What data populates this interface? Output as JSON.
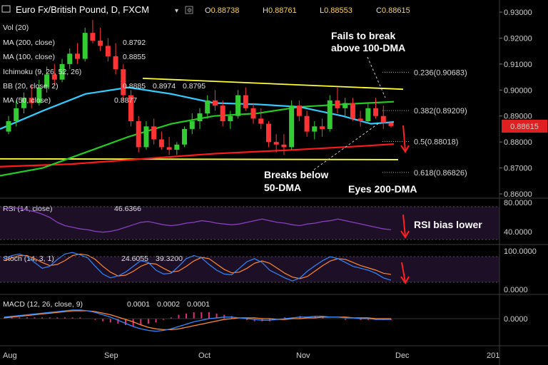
{
  "header": {
    "symbol": "Euro Fx/British Pound, D, FXCM",
    "ohlc": [
      {
        "key": "O",
        "value": "0.88738"
      },
      {
        "key": "H",
        "value": "0.88761"
      },
      {
        "key": "L",
        "value": "0.88553"
      },
      {
        "key": "C",
        "value": "0.88615"
      }
    ]
  },
  "indicators": {
    "vol": "Vol (20)",
    "ma200": {
      "label": "MA (200, close)",
      "value": "0.8792"
    },
    "ma100": {
      "label": "MA (100, close)",
      "value": "0.8855"
    },
    "ichimoku": "Ichimoku (9, 26, 52, 26)",
    "bb": {
      "label": "BB (20, close, 2)",
      "values": [
        "0.8885",
        "0.8974",
        "0.8795"
      ]
    },
    "ma50": {
      "label": "MA (50, close)",
      "value": "0.8877"
    }
  },
  "price_axis": {
    "ticks": [
      "0.93000",
      "0.92000",
      "0.91000",
      "0.90000",
      "0.89000",
      "0.88000",
      "0.87000",
      "0.86000"
    ],
    "current": "0.88615"
  },
  "fib_levels": [
    {
      "label": "0.236(0.90683)",
      "value": 0.90683
    },
    {
      "label": "0.382(0.89209)",
      "value": 0.89209
    },
    {
      "label": "0.5(0.88018)",
      "value": 0.88018
    },
    {
      "label": "0.618(0.86826)",
      "value": 0.86826
    }
  ],
  "annotations": {
    "fails_line1": "Fails to break",
    "fails_line2": "above 100-DMA",
    "breaks_line1": "Breaks below",
    "breaks_line2": "50-DMA",
    "eyes": "Eyes 200-DMA",
    "rsi_bias": "RSI bias lower"
  },
  "rsi": {
    "label": "RSI (14, close)",
    "value": "46.6366",
    "ticks": [
      "80.0000",
      "40.0000"
    ],
    "upper": 70,
    "lower": 30
  },
  "stoch": {
    "label": "Stoch (14, 3, 1)",
    "k": "24.6055",
    "d": "39.3200",
    "ticks": [
      "100.0000",
      "0.0000"
    ]
  },
  "macd": {
    "label": "MACD (12, 26, close, 9)",
    "values": [
      "0.0001",
      "0.0002",
      "0.0001"
    ],
    "ticks": [
      "0.0000"
    ]
  },
  "time_axis": [
    "Aug",
    "Sep",
    "Oct",
    "Nov",
    "Dec",
    "201"
  ],
  "colors": {
    "ma200": "#ff1a1a",
    "ma100": "#33ccff",
    "ma50": "#22cc22",
    "trendline": "#ffff33",
    "candle_up": "#33cc33",
    "candle_down": "#ff3333",
    "rsi_line": "#8a3fc0",
    "stoch_k": "#3388ff",
    "stoch_d": "#ff8833",
    "macd_line": "#3388ff",
    "signal_line": "#ff8833",
    "price_label_bg": "#e02020",
    "arrow": "#ff2020"
  },
  "chart_data": {
    "type": "candlestick",
    "title": "Euro Fx/British Pound, D, FXCM",
    "ylim": [
      0.86,
      0.933
    ],
    "x_months": [
      "Aug",
      "Sep",
      "Oct",
      "Nov",
      "Dec"
    ],
    "candles": [
      {
        "o": 0.884,
        "h": 0.89,
        "l": 0.883,
        "c": 0.888
      },
      {
        "o": 0.888,
        "h": 0.896,
        "l": 0.886,
        "c": 0.893
      },
      {
        "o": 0.893,
        "h": 0.899,
        "l": 0.891,
        "c": 0.897
      },
      {
        "o": 0.897,
        "h": 0.902,
        "l": 0.893,
        "c": 0.895
      },
      {
        "o": 0.895,
        "h": 0.904,
        "l": 0.894,
        "c": 0.901
      },
      {
        "o": 0.901,
        "h": 0.909,
        "l": 0.899,
        "c": 0.906
      },
      {
        "o": 0.906,
        "h": 0.91,
        "l": 0.902,
        "c": 0.904
      },
      {
        "o": 0.904,
        "h": 0.912,
        "l": 0.903,
        "c": 0.91
      },
      {
        "o": 0.91,
        "h": 0.916,
        "l": 0.908,
        "c": 0.914
      },
      {
        "o": 0.914,
        "h": 0.918,
        "l": 0.91,
        "c": 0.912
      },
      {
        "o": 0.912,
        "h": 0.924,
        "l": 0.911,
        "c": 0.922
      },
      {
        "o": 0.922,
        "h": 0.927,
        "l": 0.918,
        "c": 0.919
      },
      {
        "o": 0.919,
        "h": 0.924,
        "l": 0.915,
        "c": 0.917
      },
      {
        "o": 0.917,
        "h": 0.92,
        "l": 0.911,
        "c": 0.913
      },
      {
        "o": 0.913,
        "h": 0.918,
        "l": 0.906,
        "c": 0.908
      },
      {
        "o": 0.908,
        "h": 0.91,
        "l": 0.896,
        "c": 0.898
      },
      {
        "o": 0.898,
        "h": 0.9,
        "l": 0.886,
        "c": 0.888
      },
      {
        "o": 0.888,
        "h": 0.89,
        "l": 0.876,
        "c": 0.878
      },
      {
        "o": 0.878,
        "h": 0.888,
        "l": 0.877,
        "c": 0.886
      },
      {
        "o": 0.886,
        "h": 0.889,
        "l": 0.879,
        "c": 0.881
      },
      {
        "o": 0.881,
        "h": 0.884,
        "l": 0.877,
        "c": 0.878
      },
      {
        "o": 0.878,
        "h": 0.882,
        "l": 0.875,
        "c": 0.877
      },
      {
        "o": 0.877,
        "h": 0.88,
        "l": 0.875,
        "c": 0.879
      },
      {
        "o": 0.879,
        "h": 0.886,
        "l": 0.878,
        "c": 0.885
      },
      {
        "o": 0.885,
        "h": 0.891,
        "l": 0.883,
        "c": 0.888
      },
      {
        "o": 0.888,
        "h": 0.893,
        "l": 0.885,
        "c": 0.891
      },
      {
        "o": 0.891,
        "h": 0.898,
        "l": 0.889,
        "c": 0.896
      },
      {
        "o": 0.896,
        "h": 0.9,
        "l": 0.892,
        "c": 0.894
      },
      {
        "o": 0.894,
        "h": 0.896,
        "l": 0.886,
        "c": 0.888
      },
      {
        "o": 0.888,
        "h": 0.892,
        "l": 0.885,
        "c": 0.89
      },
      {
        "o": 0.89,
        "h": 0.9,
        "l": 0.889,
        "c": 0.898
      },
      {
        "o": 0.898,
        "h": 0.901,
        "l": 0.892,
        "c": 0.893
      },
      {
        "o": 0.893,
        "h": 0.895,
        "l": 0.887,
        "c": 0.889
      },
      {
        "o": 0.889,
        "h": 0.893,
        "l": 0.885,
        "c": 0.887
      },
      {
        "o": 0.887,
        "h": 0.888,
        "l": 0.878,
        "c": 0.88
      },
      {
        "o": 0.88,
        "h": 0.883,
        "l": 0.876,
        "c": 0.879
      },
      {
        "o": 0.879,
        "h": 0.883,
        "l": 0.875,
        "c": 0.878
      },
      {
        "o": 0.878,
        "h": 0.896,
        "l": 0.877,
        "c": 0.894
      },
      {
        "o": 0.894,
        "h": 0.896,
        "l": 0.888,
        "c": 0.89
      },
      {
        "o": 0.89,
        "h": 0.892,
        "l": 0.882,
        "c": 0.884
      },
      {
        "o": 0.884,
        "h": 0.888,
        "l": 0.881,
        "c": 0.886
      },
      {
        "o": 0.886,
        "h": 0.889,
        "l": 0.882,
        "c": 0.885
      },
      {
        "o": 0.885,
        "h": 0.898,
        "l": 0.884,
        "c": 0.896
      },
      {
        "o": 0.896,
        "h": 0.901,
        "l": 0.891,
        "c": 0.893
      },
      {
        "o": 0.893,
        "h": 0.897,
        "l": 0.89,
        "c": 0.895
      },
      {
        "o": 0.895,
        "h": 0.897,
        "l": 0.888,
        "c": 0.889
      },
      {
        "o": 0.889,
        "h": 0.892,
        "l": 0.886,
        "c": 0.888
      },
      {
        "o": 0.888,
        "h": 0.895,
        "l": 0.887,
        "c": 0.893
      },
      {
        "o": 0.893,
        "h": 0.897,
        "l": 0.889,
        "c": 0.89
      },
      {
        "o": 0.89,
        "h": 0.894,
        "l": 0.885,
        "c": 0.8874
      },
      {
        "o": 0.88738,
        "h": 0.88761,
        "l": 0.88553,
        "c": 0.88615
      }
    ]
  }
}
